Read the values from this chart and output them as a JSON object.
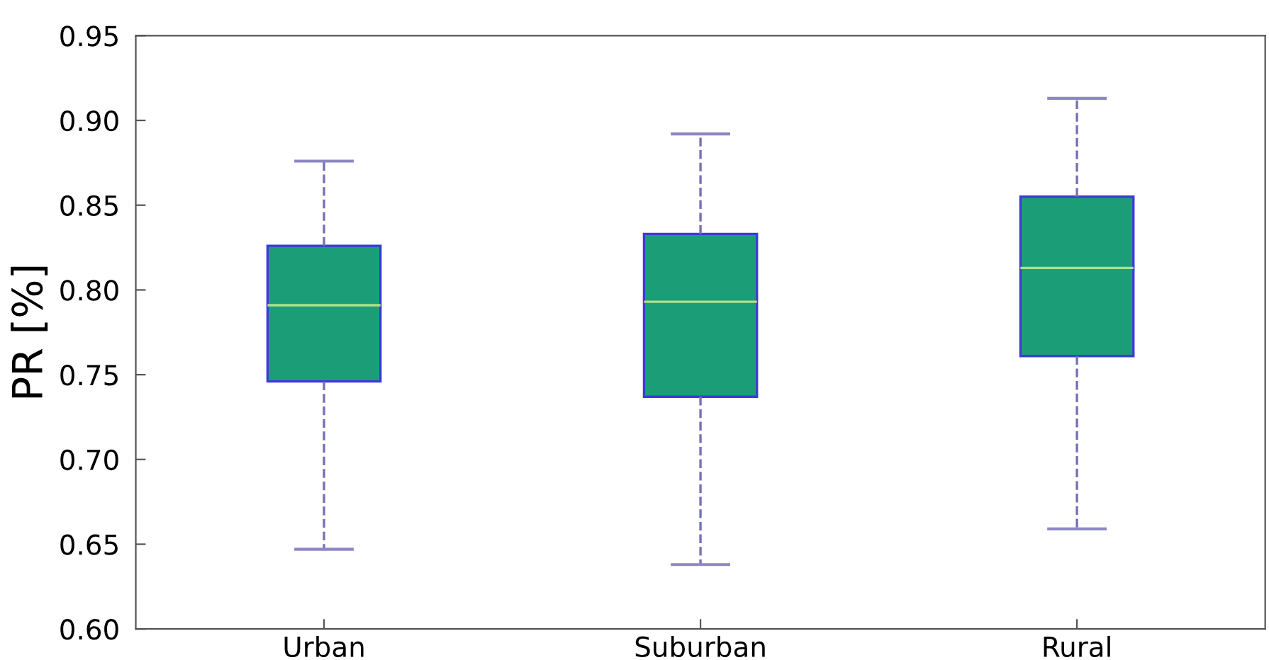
{
  "chart_data": {
    "type": "box",
    "ylabel": "PR [%]",
    "categories": [
      "Urban",
      "Suburban",
      "Rural"
    ],
    "boxes": [
      {
        "low": 0.647,
        "q1": 0.746,
        "median": 0.791,
        "q3": 0.826,
        "high": 0.876
      },
      {
        "low": 0.638,
        "q1": 0.737,
        "median": 0.793,
        "q3": 0.833,
        "high": 0.892
      },
      {
        "low": 0.659,
        "q1": 0.761,
        "median": 0.813,
        "q3": 0.855,
        "high": 0.913
      }
    ],
    "color": "#1b9e77",
    "line_style": "dashed",
    "ylim": [
      0.6,
      0.95
    ],
    "yticks": [
      {
        "value": 0.6,
        "label": "0.60"
      },
      {
        "value": 0.65,
        "label": "0.65"
      },
      {
        "value": 0.7,
        "label": "0.70"
      },
      {
        "value": 0.75,
        "label": "0.75"
      },
      {
        "value": 0.8,
        "label": "0.80"
      },
      {
        "value": 0.85,
        "label": "0.85"
      },
      {
        "value": 0.9,
        "label": "0.90"
      },
      {
        "value": 0.95,
        "label": "0.95"
      }
    ]
  }
}
